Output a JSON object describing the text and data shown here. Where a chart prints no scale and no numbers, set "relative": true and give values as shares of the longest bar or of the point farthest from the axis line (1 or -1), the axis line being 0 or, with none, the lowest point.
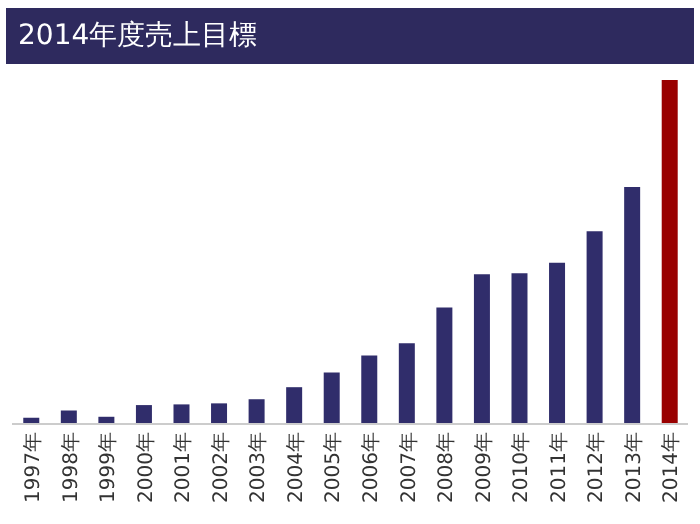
{
  "chart_data": {
    "type": "bar",
    "title": "2014年度売上目標",
    "relative": true,
    "categories": [
      "1997年",
      "1998年",
      "1999年",
      "2000年",
      "2001年",
      "2002年",
      "2003年",
      "2004年",
      "2005年",
      "2006年",
      "2007年",
      "2008年",
      "2009年",
      "2010年",
      "2011年",
      "2012年",
      "2013年",
      "2014年"
    ],
    "values": [
      0.018,
      0.039,
      0.021,
      0.055,
      0.057,
      0.06,
      0.072,
      0.107,
      0.15,
      0.199,
      0.235,
      0.339,
      0.435,
      0.438,
      0.469,
      0.56,
      0.689,
      1
    ],
    "colors": [
      "#302d6b",
      "#302d6b",
      "#302d6b",
      "#302d6b",
      "#302d6b",
      "#302d6b",
      "#302d6b",
      "#302d6b",
      "#302d6b",
      "#302d6b",
      "#302d6b",
      "#302d6b",
      "#302d6b",
      "#302d6b",
      "#302d6b",
      "#302d6b",
      "#302d6b",
      "#990000"
    ],
    "grid": false,
    "legend": false
  }
}
